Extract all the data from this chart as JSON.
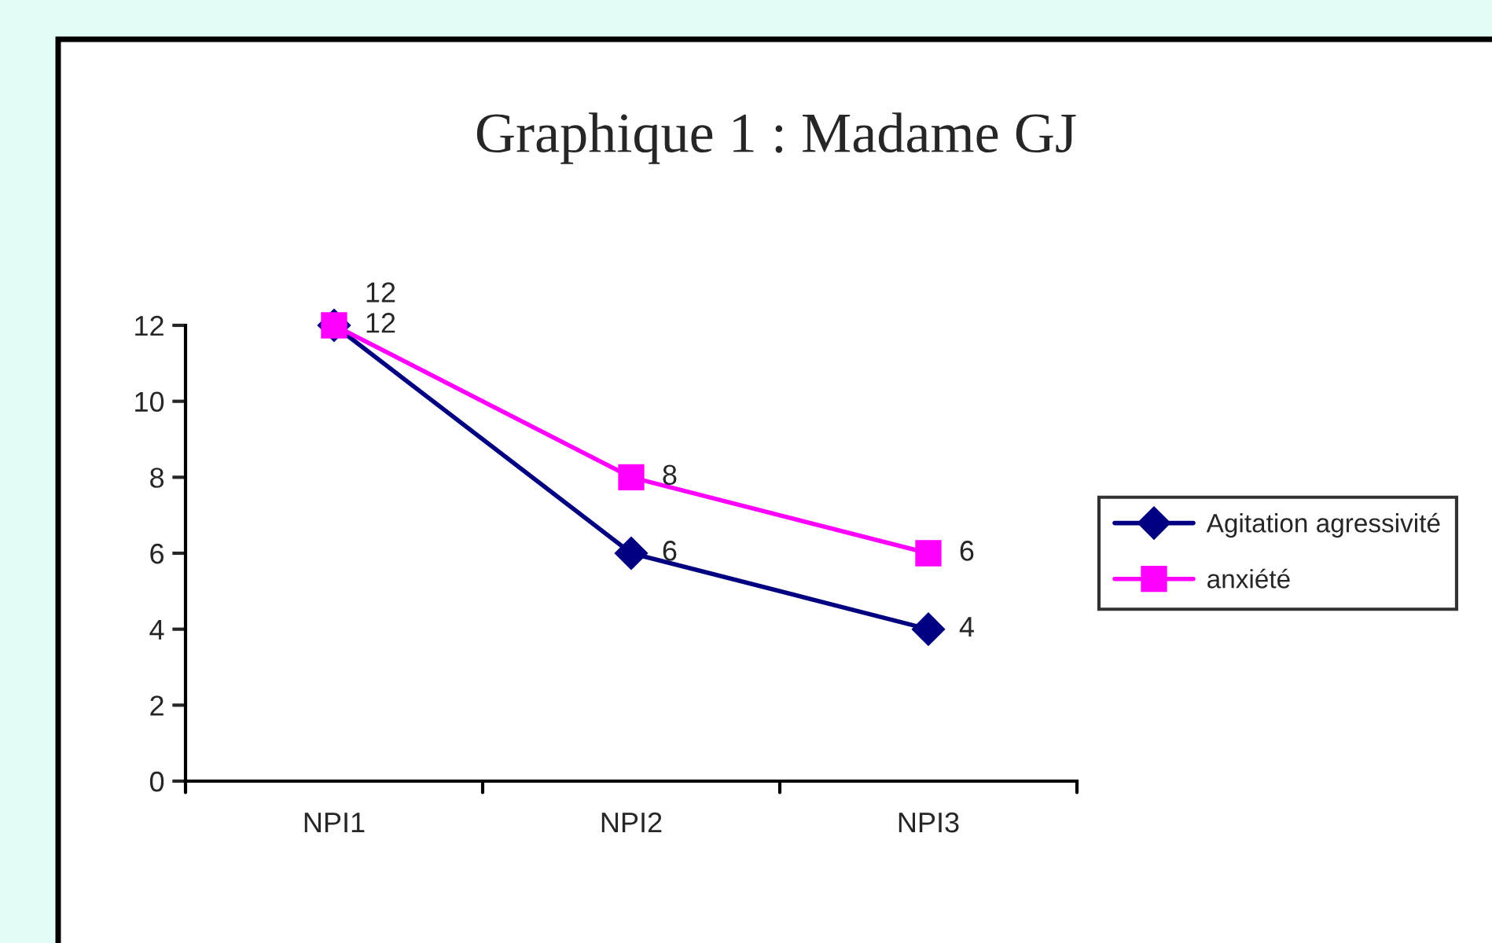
{
  "chart_data": {
    "type": "line",
    "title": "Graphique 1 : Madame GJ",
    "categories": [
      "NPI1",
      "NPI2",
      "NPI3"
    ],
    "series": [
      {
        "name": "Agitation agressivité",
        "color": "#000080",
        "values": [
          12,
          6,
          4
        ],
        "marker": "diamond"
      },
      {
        "name": "anxiété",
        "color": "#ff00ff",
        "values": [
          12,
          8,
          6
        ],
        "marker": "square"
      }
    ],
    "ylim": [
      0,
      12
    ],
    "yticks": [
      0,
      2,
      4,
      6,
      8,
      10,
      12
    ],
    "grid": false,
    "legend": "right",
    "data_labels": true,
    "line_style": "solid"
  }
}
